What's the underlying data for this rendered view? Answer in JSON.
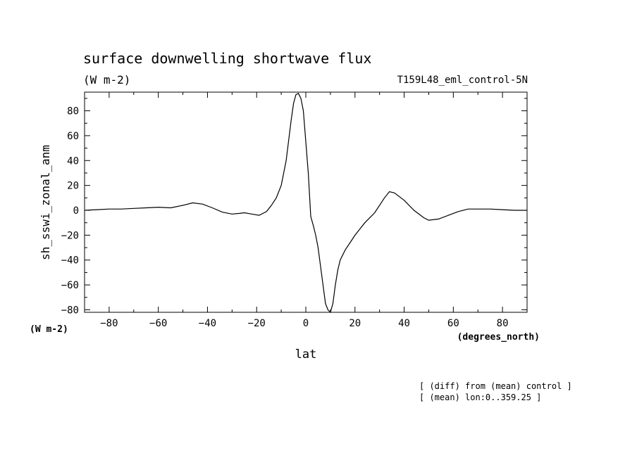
{
  "chart_data": {
    "type": "line",
    "title": "surface downwelling shortwave flux",
    "subtitle_left": "(W m-2)",
    "subtitle_right": "T159L48_eml_control-5N",
    "ylabel": "sh_sswi_zonal_anm",
    "yunits": "(W m-2)",
    "xlabel": "lat",
    "xunits": "(degrees_north)",
    "xlim": [
      -90,
      90
    ],
    "ylim": [
      -82,
      95
    ],
    "xticks": [
      -80,
      -60,
      -40,
      -20,
      0,
      20,
      40,
      60,
      80
    ],
    "yticks": [
      -80,
      -60,
      -40,
      -20,
      0,
      20,
      40,
      60,
      80
    ],
    "xtick_labels": [
      "−80",
      "−60",
      "−40",
      "−20",
      "0",
      "20",
      "40",
      "60",
      "80"
    ],
    "ytick_labels": [
      "−80",
      "−60",
      "−40",
      "−20",
      "0",
      "20",
      "40",
      "60",
      "80"
    ],
    "grid": false,
    "series": [
      {
        "x": [
          -90,
          -85,
          -80,
          -75,
          -70,
          -65,
          -60,
          -55,
          -50,
          -46,
          -42,
          -38,
          -34,
          -30,
          -27,
          -25,
          -22,
          -19,
          -16,
          -14,
          -12,
          -10,
          -8,
          -6,
          -5,
          -4,
          -3,
          -2,
          -1,
          0,
          1,
          2,
          3,
          4,
          5,
          6,
          7,
          8,
          9,
          10,
          11,
          12,
          13,
          14,
          16,
          18,
          20,
          24,
          28,
          32,
          34,
          36,
          40,
          44,
          48,
          50,
          54,
          58,
          62,
          66,
          70,
          75,
          80,
          85,
          90
        ],
        "y": [
          0,
          0.5,
          1,
          1,
          1.5,
          2,
          2.5,
          2,
          4,
          6,
          5,
          2,
          -1.5,
          -3,
          -2.5,
          -2,
          -3,
          -4,
          -1,
          4,
          10,
          20,
          40,
          72,
          86,
          93,
          94,
          90,
          80,
          55,
          30,
          -5,
          -12,
          -20,
          -30,
          -45,
          -60,
          -75,
          -80,
          -82,
          -75,
          -60,
          -48,
          -40,
          -32,
          -26,
          -20,
          -10,
          -2,
          10,
          15,
          14,
          8,
          0,
          -6,
          -8,
          -7,
          -4,
          -1,
          1,
          1,
          1,
          0.5,
          0,
          0
        ]
      }
    ]
  },
  "notes": {
    "line1": "[ (diff) from (mean) control ]",
    "line2": "[ (mean) lon:0..359.25 ]"
  }
}
